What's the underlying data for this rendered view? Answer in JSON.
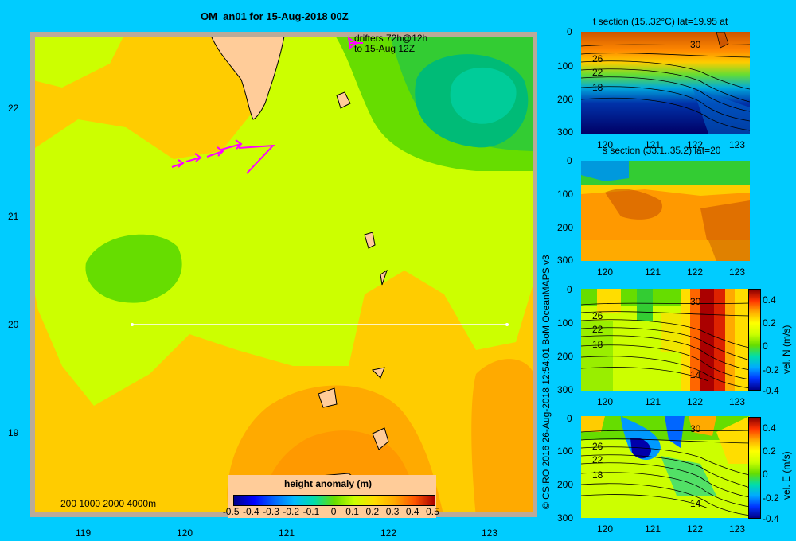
{
  "chart_data": [
    {
      "type": "heatmap",
      "title": "OM_an01 for 15-Aug-2018 00Z",
      "annotation": "drifters 72h@12h",
      "annotation2": "to 15-Aug 12Z",
      "x_ticks": [
        "119",
        "120",
        "121",
        "122",
        "123"
      ],
      "y_ticks": [
        "22",
        "21",
        "20",
        "19"
      ],
      "xlim": [
        118.5,
        123.5
      ],
      "ylim": [
        18.25,
        22.7
      ],
      "section_line": {
        "lat": 20,
        "lon_start": 119.5,
        "lon_end": 123.2
      },
      "depth_legend": "200  1000  2000  4000m",
      "colorbar": {
        "label": "height anomaly (m)",
        "ticks": [
          "-0.5",
          "-0.4",
          "-0.3",
          "-0.2",
          "-0.1",
          "0",
          "0.1",
          "0.2",
          "0.3",
          "0.4",
          "0.5"
        ],
        "range": [
          -0.5,
          0.5
        ]
      }
    },
    {
      "type": "heatmap",
      "title": "t section (15..32°C) lat=19.95 at",
      "x_ticks": [
        "120",
        "121",
        "122",
        "123"
      ],
      "y_ticks": [
        "0",
        "100",
        "200",
        "300"
      ],
      "contour_labels": [
        "30",
        "26",
        "22",
        "18"
      ]
    },
    {
      "type": "heatmap",
      "title": "s section (33.1..35.2) lat=20",
      "x_ticks": [
        "120",
        "121",
        "122",
        "123"
      ],
      "y_ticks": [
        "0",
        "100",
        "200",
        "300"
      ]
    },
    {
      "type": "heatmap",
      "title": "",
      "x_ticks": [
        "120",
        "121",
        "122",
        "123"
      ],
      "y_ticks": [
        "0",
        "100",
        "200",
        "300"
      ],
      "contour_labels": [
        "30",
        "26",
        "22",
        "18",
        "14"
      ],
      "colorbar": {
        "label": "vel. N (m/s)",
        "ticks": [
          "0.4",
          "0.2",
          "0",
          "-0.2",
          "-0.4"
        ]
      }
    },
    {
      "type": "heatmap",
      "title": "",
      "x_ticks": [
        "120",
        "121",
        "122",
        "123"
      ],
      "y_ticks": [
        "0",
        "100",
        "200",
        "300"
      ],
      "contour_labels": [
        "30",
        "26",
        "22",
        "18",
        "14"
      ],
      "colorbar": {
        "label": "vel. E (m/s)",
        "ticks": [
          "0.4",
          "0.2",
          "0",
          "-0.2",
          "-0.4"
        ]
      }
    }
  ],
  "credit": "© CSIRO 2016   26-Aug-2018 12:54:01 BoM OceanMAPS v3",
  "colors": {
    "background": "#00ccff",
    "land": "#ffcc99",
    "shelf": "#bbaa99",
    "drifter": "#ff00ff"
  }
}
